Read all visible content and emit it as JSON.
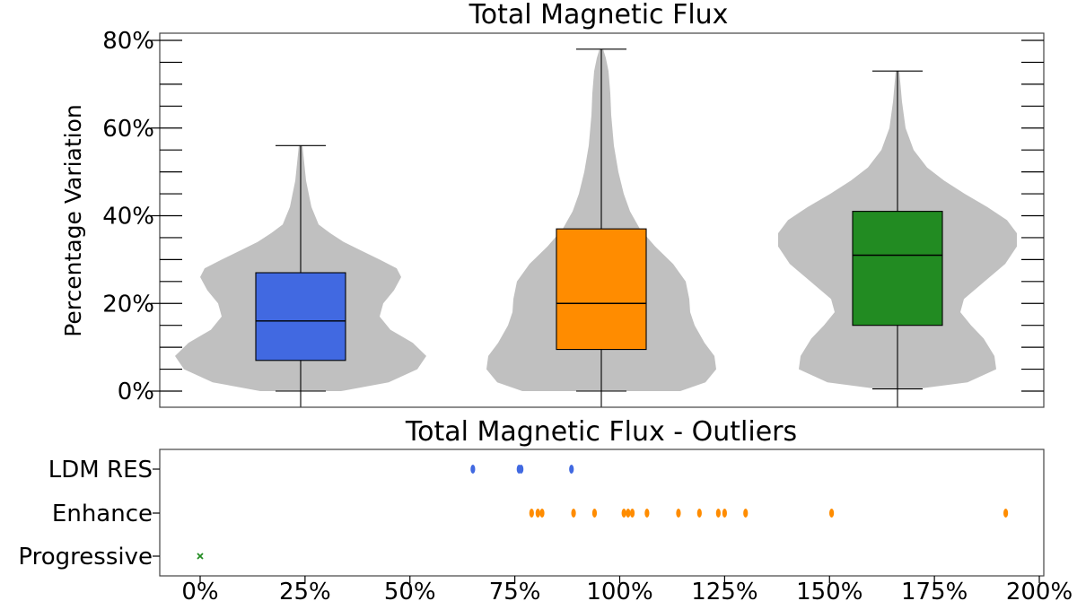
{
  "chart_data": [
    {
      "type": "violin+box",
      "title": "Total Magnetic Flux",
      "ylabel": "Percentage Variation",
      "xlabel": "",
      "ylim": [
        -4,
        81
      ],
      "yticks": [
        0,
        20,
        40,
        60,
        80
      ],
      "ytick_labels": [
        "0%",
        "20%",
        "40%",
        "60%",
        "80%"
      ],
      "minor_ticks_right": true,
      "groups": [
        {
          "color": "#4169E1",
          "whisker_low": 0,
          "q1": 7,
          "median": 16,
          "q3": 27,
          "whisker_high": 56
        },
        {
          "color": "#FF8C00",
          "whisker_low": 0,
          "q1": 9.5,
          "median": 20,
          "q3": 37,
          "whisker_high": 78
        },
        {
          "color": "#228B22",
          "whisker_low": 0.5,
          "q1": 15,
          "median": 31,
          "q3": 41,
          "whisker_high": 73
        }
      ]
    },
    {
      "type": "scatter",
      "title": "Total Magnetic Flux - Outliers",
      "categories": [
        "LDM RES",
        "Enhance",
        "Progressive"
      ],
      "xlim": [
        -10,
        200
      ],
      "xticks": [
        0,
        25,
        50,
        75,
        100,
        125,
        150,
        175,
        200
      ],
      "xtick_labels": [
        "0%",
        "25%",
        "50%",
        "75%",
        "100%",
        "125%",
        "150%",
        "175%",
        "200%"
      ],
      "series": [
        {
          "category": "LDM RES",
          "color": "#4169E1",
          "marker": "o",
          "x": [
            65,
            76,
            76.5,
            88.5
          ]
        },
        {
          "category": "Enhance",
          "color": "#FF8C00",
          "marker": "o",
          "x": [
            79,
            80.5,
            81.5,
            89,
            94,
            101,
            102,
            103,
            106.5,
            114,
            119,
            123.5,
            125,
            130,
            150.5,
            192
          ]
        },
        {
          "category": "Progressive",
          "color": "#228B22",
          "marker": "x",
          "x": [
            0
          ]
        }
      ]
    }
  ]
}
